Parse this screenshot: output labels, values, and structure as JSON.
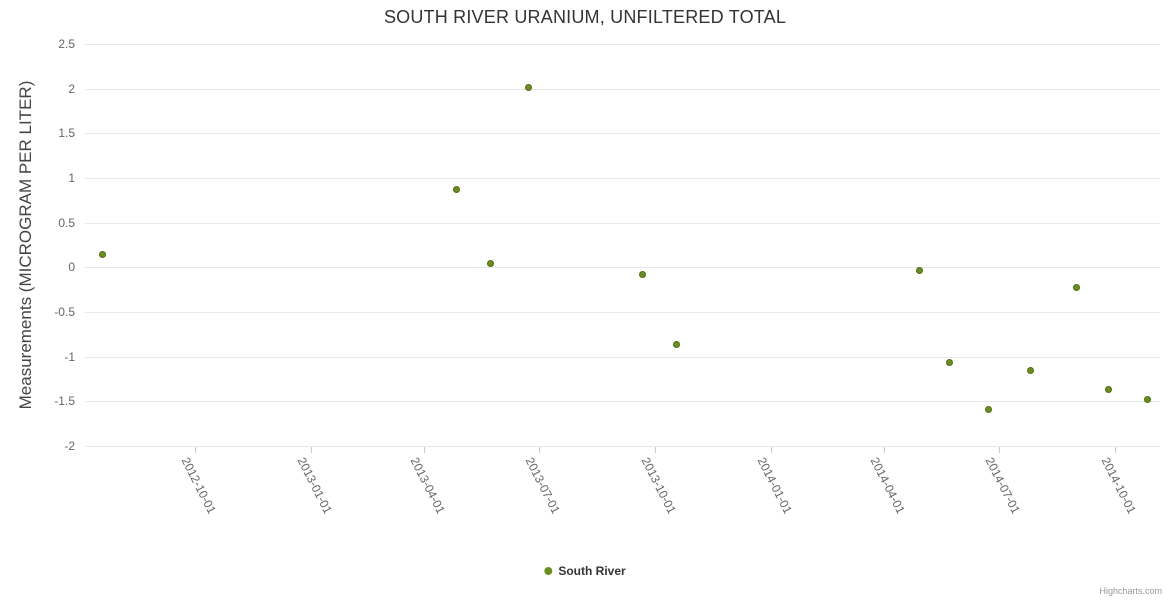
{
  "chart_data": {
    "type": "scatter",
    "title": "SOUTH RIVER URANIUM, UNFILTERED TOTAL",
    "xlabel": "",
    "ylabel": "Measurements (MICROGRAM PER LITER)",
    "ylim": [
      -2,
      2.5
    ],
    "xlim": [
      "2012-07-06",
      "2014-11-06"
    ],
    "y_ticks": [
      "2.5",
      "2",
      "1.5",
      "1",
      "0.5",
      "0",
      "-0.5",
      "-1",
      "-1.5",
      "-2"
    ],
    "x_ticks": [
      "2012-10-01",
      "2013-01-01",
      "2013-04-01",
      "2013-07-01",
      "2013-10-01",
      "2014-01-01",
      "2014-04-01",
      "2014-07-01",
      "2014-10-01"
    ],
    "grid": "horizontal",
    "legend_position": "bottom-center",
    "series": [
      {
        "name": "South River",
        "color": "#6B8E23",
        "points": [
          {
            "date": "2012-07-20",
            "value": 0.14
          },
          {
            "date": "2013-04-27",
            "value": 0.87
          },
          {
            "date": "2013-05-24",
            "value": 0.04
          },
          {
            "date": "2013-06-23",
            "value": 2.01
          },
          {
            "date": "2013-09-21",
            "value": -0.08
          },
          {
            "date": "2013-10-18",
            "value": -0.86
          },
          {
            "date": "2014-04-29",
            "value": -0.03
          },
          {
            "date": "2014-05-23",
            "value": -1.07
          },
          {
            "date": "2014-06-23",
            "value": -1.59
          },
          {
            "date": "2014-07-26",
            "value": -1.15
          },
          {
            "date": "2014-09-01",
            "value": -0.23
          },
          {
            "date": "2014-09-26",
            "value": -1.37
          },
          {
            "date": "2014-10-27",
            "value": -1.48
          }
        ]
      }
    ]
  },
  "credits_label": "Highcharts.com"
}
